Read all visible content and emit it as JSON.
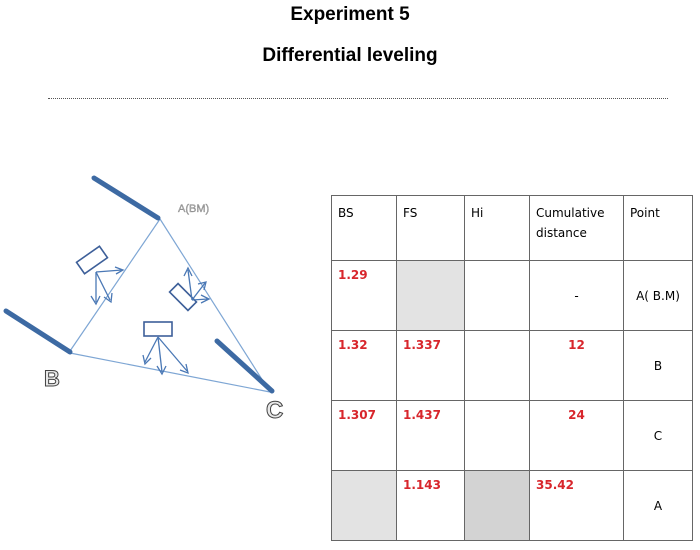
{
  "document": {
    "title": "Experiment 5",
    "subtitle": "Differential leveling"
  },
  "diagram": {
    "point_a_label": "A(BM)",
    "point_b_label": "B",
    "point_c_label": "C",
    "staff_color": "#3d6aa3",
    "line_color": "#7ea6d4"
  },
  "table": {
    "headers": {
      "bs": "BS",
      "fs": "FS",
      "hi": "Hi",
      "cumulative": "Cumulative distance",
      "point": "Point"
    },
    "rows": [
      {
        "bs": "1.29",
        "fs": "",
        "hi": "",
        "cumulative": "-",
        "point": "A( B.M)"
      },
      {
        "bs": "1.32",
        "fs": "1.337",
        "hi": "",
        "cumulative": "12",
        "point": "B"
      },
      {
        "bs": "1.307",
        "fs": "1.437",
        "hi": "",
        "cumulative": "24",
        "point": "C"
      },
      {
        "bs": "",
        "fs": "1.143",
        "hi": "",
        "cumulative": "35.42",
        "point": "A"
      }
    ],
    "value_color": "#d8262c",
    "shade_color": "#e3e3e3"
  }
}
